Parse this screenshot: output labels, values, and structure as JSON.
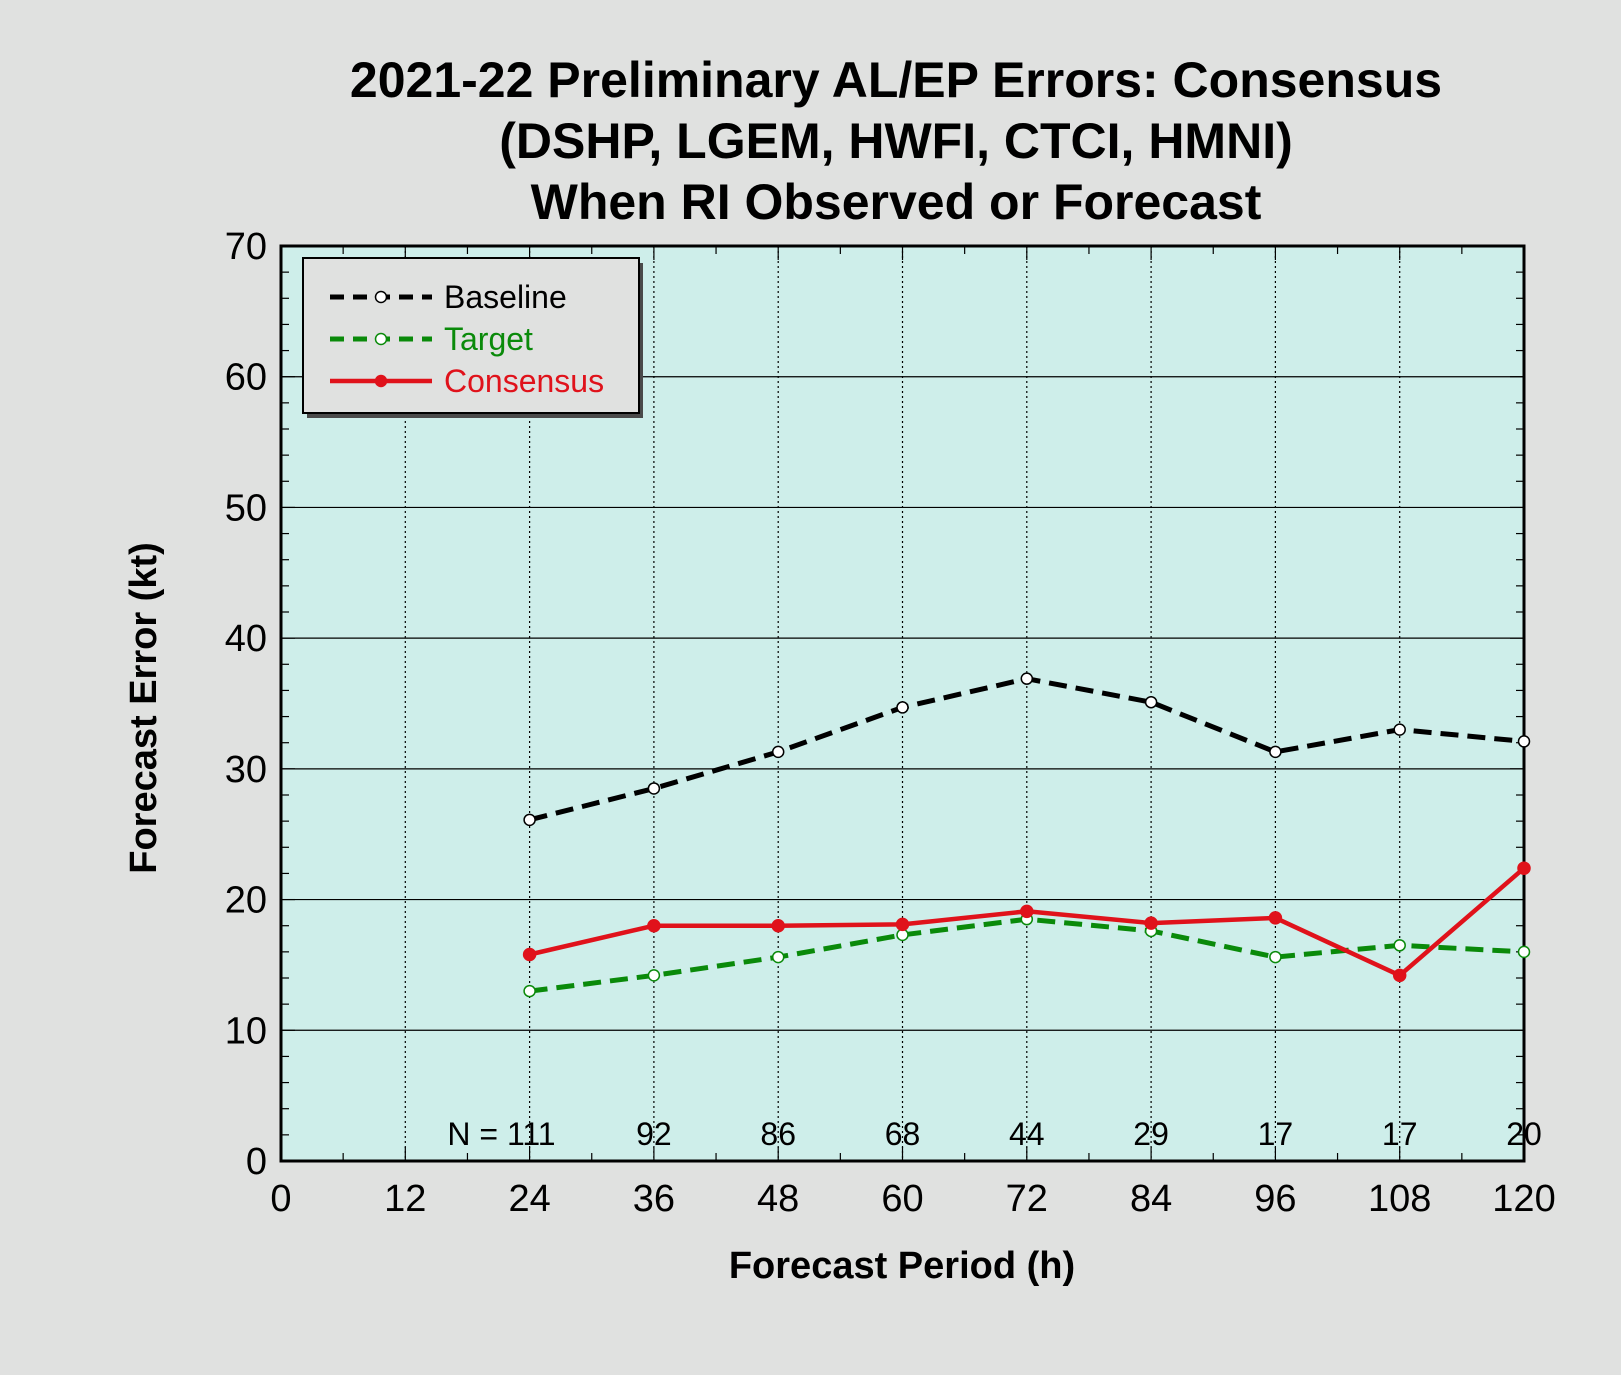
{
  "chart_data": {
    "type": "line",
    "title_lines": [
      "2021-22 Preliminary AL/EP Errors: Consensus",
      "(DSHP, LGEM, HWFI, CTCI, HMNI)",
      "When RI Observed or Forecast"
    ],
    "xlabel": "Forecast Period (h)",
    "ylabel": "Forecast Error (kt)",
    "xlim": [
      0,
      120
    ],
    "ylim": [
      0,
      70
    ],
    "xticks": [
      0,
      12,
      24,
      36,
      48,
      60,
      72,
      84,
      96,
      108,
      120
    ],
    "yticks": [
      0,
      10,
      20,
      30,
      40,
      50,
      60,
      70
    ],
    "grid": true,
    "legend_position": "top-left",
    "x": [
      24,
      36,
      48,
      60,
      72,
      84,
      96,
      108,
      120
    ],
    "series": [
      {
        "name": "Baseline",
        "color": "#000000",
        "style": "dashed",
        "marker": "open-circle",
        "values": [
          26.1,
          28.5,
          31.3,
          34.7,
          36.9,
          35.1,
          31.3,
          33.0,
          32.1
        ]
      },
      {
        "name": "Target",
        "color": "#0a8a0a",
        "style": "dashed",
        "marker": "open-circle",
        "values": [
          13.0,
          14.2,
          15.6,
          17.3,
          18.5,
          17.6,
          15.6,
          16.5,
          16.0
        ]
      },
      {
        "name": "Consensus",
        "color": "#e0121b",
        "style": "solid",
        "marker": "filled-circle",
        "values": [
          15.8,
          18.0,
          18.0,
          18.1,
          19.1,
          18.2,
          18.6,
          14.2,
          22.4
        ]
      }
    ],
    "sample_prefix": "N = ",
    "sample_sizes": [
      "111",
      "92",
      "86",
      "68",
      "44",
      "29",
      "17",
      "17",
      "20"
    ],
    "plot_background": "#ceeeea"
  }
}
